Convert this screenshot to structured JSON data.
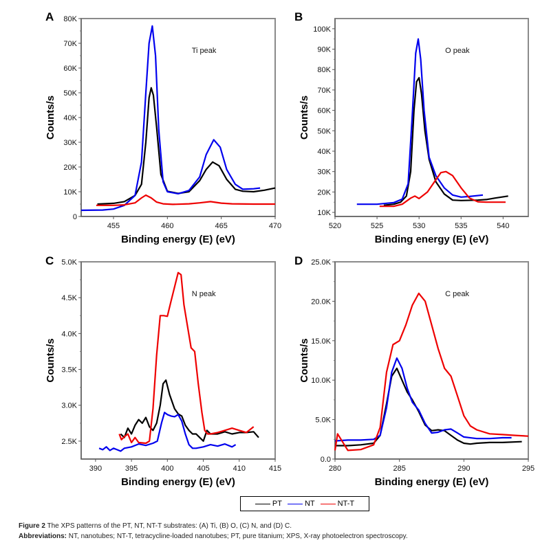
{
  "figure": {
    "caption_label": "Figure 2",
    "caption_text": " The XPS patterns of the PT, NT, NT-T substrates: (A) Ti, (B) O, (C) N, and (D) C.",
    "abbrev_label": "Abbreviations:",
    "abbrev_text": " NT, nanotubes; NT-T, tetracycline-loaded nanotubes; PT, pure titanium; XPS, X-ray photoelectron spectroscopy."
  },
  "legend": [
    {
      "name": "PT",
      "color": "#000000"
    },
    {
      "name": "NT",
      "color": "#0000ee"
    },
    {
      "name": "NT-T",
      "color": "#ee0000"
    }
  ],
  "chart_data": [
    {
      "panel": "A",
      "type": "line",
      "annotation": "Ti peak",
      "xlabel": "Binding energy (E) (eV)",
      "ylabel": "Counts/s",
      "xlim": [
        452,
        470
      ],
      "ylim": [
        0,
        80000
      ],
      "xticks": [
        455,
        460,
        465,
        470
      ],
      "xtick_labels": [
        "455",
        "460",
        "465",
        "470"
      ],
      "yticks": [
        0,
        10000,
        20000,
        30000,
        40000,
        50000,
        60000,
        70000,
        80000
      ],
      "ytick_labels": [
        "0",
        "10K",
        "20K",
        "30K",
        "40K",
        "50K",
        "60K",
        "70K",
        "80K"
      ],
      "series": [
        {
          "name": "PT",
          "x": [
            453.5,
            455,
            456,
            457,
            457.6,
            458,
            458.3,
            458.5,
            458.7,
            459,
            459.4,
            460,
            461,
            462,
            463,
            463.6,
            464.2,
            464.8,
            465.5,
            466.3,
            467,
            468,
            469,
            470
          ],
          "y": [
            5000,
            5300,
            6000,
            8500,
            13000,
            30000,
            48000,
            52000,
            49000,
            36000,
            17000,
            10200,
            9300,
            10000,
            14500,
            19000,
            22000,
            20500,
            15000,
            11000,
            10200,
            10000,
            10600,
            11500
          ]
        },
        {
          "name": "NT",
          "x": [
            452,
            454,
            455,
            456,
            457,
            457.6,
            458,
            458.3,
            458.6,
            458.9,
            459.2,
            459.6,
            460,
            461,
            462,
            463,
            463.6,
            464.3,
            464.9,
            465.5,
            466.3,
            467,
            468,
            468.6
          ],
          "y": [
            2500,
            2600,
            3000,
            4500,
            8500,
            22000,
            50000,
            70000,
            77000,
            65000,
            35000,
            14000,
            10000,
            9200,
            10500,
            16000,
            25000,
            31000,
            28000,
            19000,
            13000,
            11000,
            11200,
            11500
          ]
        },
        {
          "name": "NT-T",
          "x": [
            453.4,
            455,
            456,
            457,
            457.6,
            458,
            458.5,
            459,
            459.6,
            460.5,
            462,
            463,
            464,
            465,
            466,
            468,
            470
          ],
          "y": [
            4500,
            4500,
            4700,
            5500,
            7500,
            8600,
            7500,
            5800,
            5100,
            4900,
            5100,
            5500,
            6000,
            5400,
            5100,
            5000,
            5000
          ]
        }
      ]
    },
    {
      "panel": "B",
      "type": "line",
      "annotation": "O peak",
      "xlabel": "Binding energy (E) (eV)",
      "ylabel": "Counts/s",
      "xlim": [
        520,
        543
      ],
      "ylim": [
        8000,
        105000
      ],
      "xticks": [
        520,
        525,
        530,
        535,
        540
      ],
      "xtick_labels": [
        "520",
        "525",
        "530",
        "535",
        "540"
      ],
      "yticks": [
        10000,
        20000,
        30000,
        40000,
        50000,
        60000,
        70000,
        80000,
        90000,
        100000
      ],
      "ytick_labels": [
        "10K",
        "20K",
        "30K",
        "40K",
        "50K",
        "60K",
        "70K",
        "80K",
        "90K",
        "100K"
      ],
      "series": [
        {
          "name": "PT",
          "x": [
            525.8,
            527,
            527.8,
            528.5,
            529,
            529.4,
            529.7,
            530,
            530.3,
            530.7,
            531.2,
            532,
            533,
            534,
            535,
            537,
            538,
            539,
            540.6
          ],
          "y": [
            13500,
            14000,
            15000,
            18000,
            30000,
            60000,
            74000,
            76000,
            68000,
            50000,
            36000,
            25000,
            19000,
            16000,
            15800,
            16000,
            16300,
            17000,
            18000
          ]
        },
        {
          "name": "NT",
          "x": [
            522.6,
            525,
            527,
            528,
            528.7,
            529.2,
            529.6,
            529.9,
            530.2,
            530.6,
            531.2,
            532,
            533,
            534,
            535,
            536,
            537.6
          ],
          "y": [
            14000,
            14000,
            14800,
            16500,
            24000,
            58000,
            88000,
            95000,
            85000,
            60000,
            37000,
            28000,
            22000,
            18500,
            17500,
            17800,
            18500
          ]
        },
        {
          "name": "NT-T",
          "x": [
            525.3,
            527,
            528,
            529,
            529.5,
            530,
            531,
            532,
            532.6,
            533.2,
            534,
            535,
            536,
            537,
            538,
            540.3
          ],
          "y": [
            13000,
            13000,
            14000,
            17000,
            18000,
            16800,
            20000,
            26000,
            29500,
            30000,
            28000,
            22000,
            17000,
            15200,
            15000,
            15000
          ]
        }
      ]
    },
    {
      "panel": "C",
      "type": "line",
      "annotation": "N peak",
      "xlabel": "Binding energy (E) (eV)",
      "ylabel": "Counts/s",
      "xlim": [
        388,
        415
      ],
      "ylim": [
        2250,
        5000
      ],
      "xticks": [
        390,
        395,
        400,
        405,
        410,
        415
      ],
      "xtick_labels": [
        "390",
        "395",
        "400",
        "405",
        "410",
        "415"
      ],
      "yticks": [
        2500,
        3000,
        3500,
        4000,
        4500,
        5000
      ],
      "ytick_labels": [
        "2.5K",
        "3.0K",
        "3.5K",
        "4.0K",
        "4.5K",
        "5.0K"
      ],
      "series": [
        {
          "name": "PT",
          "x": [
            393.5,
            394,
            394.5,
            395,
            395.5,
            396,
            396.5,
            397,
            397.5,
            398,
            398.5,
            399,
            399.4,
            399.8,
            400.3,
            401,
            401.5,
            402,
            402.5,
            403,
            403.5,
            404,
            404.5,
            405,
            405.5,
            406,
            407,
            408,
            409,
            410,
            411,
            412,
            412.7
          ],
          "y": [
            2600,
            2550,
            2680,
            2600,
            2720,
            2800,
            2750,
            2830,
            2700,
            2650,
            2750,
            3000,
            3300,
            3350,
            3150,
            2950,
            2880,
            2850,
            2720,
            2650,
            2600,
            2600,
            2550,
            2500,
            2650,
            2600,
            2600,
            2630,
            2600,
            2620,
            2620,
            2630,
            2550
          ]
        },
        {
          "name": "NT",
          "x": [
            390.5,
            391,
            391.5,
            392,
            392.5,
            393,
            393.5,
            394,
            395,
            396,
            397,
            398,
            398.6,
            399.2,
            399.6,
            400,
            400.5,
            401,
            401.5,
            402,
            402.5,
            403,
            403.5,
            404,
            405,
            406,
            407,
            408,
            409,
            409.5
          ],
          "y": [
            2400,
            2380,
            2420,
            2370,
            2400,
            2380,
            2360,
            2400,
            2420,
            2460,
            2440,
            2470,
            2500,
            2760,
            2900,
            2870,
            2850,
            2840,
            2870,
            2780,
            2600,
            2450,
            2400,
            2400,
            2420,
            2450,
            2430,
            2460,
            2420,
            2450
          ]
        },
        {
          "name": "NT-T",
          "x": [
            393.3,
            393.6,
            394,
            394.5,
            395,
            395.5,
            396,
            397,
            397.5,
            398,
            398.5,
            399,
            399.5,
            400,
            400.5,
            401,
            401.5,
            401.9,
            402.3,
            402.8,
            403.3,
            403.8,
            404.3,
            404.8,
            405.2,
            405.6,
            406,
            407,
            408,
            409,
            410,
            411,
            412
          ],
          "y": [
            2600,
            2520,
            2560,
            2600,
            2480,
            2550,
            2480,
            2470,
            2500,
            2950,
            3700,
            4250,
            4250,
            4240,
            4450,
            4650,
            4850,
            4820,
            4400,
            4100,
            3800,
            3750,
            3300,
            2900,
            2650,
            2600,
            2600,
            2620,
            2650,
            2680,
            2650,
            2620,
            2700
          ]
        }
      ]
    },
    {
      "panel": "D",
      "type": "line",
      "annotation": "C peak",
      "xlabel": "Binding energy (E) (eV)",
      "ylabel": "Counts/s",
      "xlim": [
        280,
        295
      ],
      "ylim": [
        0,
        25000
      ],
      "xticks": [
        280,
        285,
        290,
        295
      ],
      "xtick_labels": [
        "280",
        "285",
        "290",
        "295"
      ],
      "yticks": [
        0,
        5000,
        10000,
        15000,
        20000,
        25000
      ],
      "ytick_labels": [
        "0.0",
        "5.0K",
        "10.0K",
        "15.0K",
        "20.0K",
        "25.0K"
      ],
      "series": [
        {
          "name": "PT",
          "x": [
            280,
            281,
            282,
            283,
            283.5,
            284,
            284.4,
            284.8,
            285.2,
            285.6,
            286,
            286.5,
            287,
            287.5,
            288,
            288.5,
            289,
            289.5,
            290,
            290.5,
            291,
            292,
            293,
            294.5
          ],
          "y": [
            1700,
            1700,
            1800,
            2000,
            3000,
            7000,
            10500,
            11500,
            10000,
            8500,
            7500,
            6000,
            4300,
            3600,
            3700,
            3600,
            3000,
            2400,
            2000,
            1900,
            2000,
            2100,
            2100,
            2200
          ]
        },
        {
          "name": "NT",
          "x": [
            280,
            281,
            282,
            283,
            283.5,
            284,
            284.4,
            284.8,
            285.2,
            285.6,
            286,
            286.5,
            287,
            287.5,
            288,
            288.5,
            289,
            289.5,
            290,
            291,
            292,
            293,
            293.7
          ],
          "y": [
            2300,
            2400,
            2400,
            2500,
            3000,
            6500,
            11000,
            12800,
            11500,
            9000,
            7200,
            6200,
            4500,
            3300,
            3400,
            3700,
            3800,
            3300,
            2800,
            2600,
            2600,
            2700,
            2700
          ]
        },
        {
          "name": "NT-T",
          "x": [
            280,
            280.2,
            281,
            282,
            283,
            283.5,
            284,
            284.5,
            285,
            285.5,
            286,
            286.5,
            287,
            287.5,
            288,
            288.5,
            289,
            289.5,
            290,
            290.5,
            291,
            292,
            293,
            294,
            295
          ],
          "y": [
            1100,
            3200,
            1100,
            1200,
            1800,
            4000,
            11000,
            14500,
            15000,
            17000,
            19500,
            21000,
            20000,
            17000,
            14000,
            11500,
            10500,
            8000,
            5500,
            4200,
            3700,
            3200,
            3100,
            3000,
            2900
          ]
        }
      ]
    }
  ]
}
